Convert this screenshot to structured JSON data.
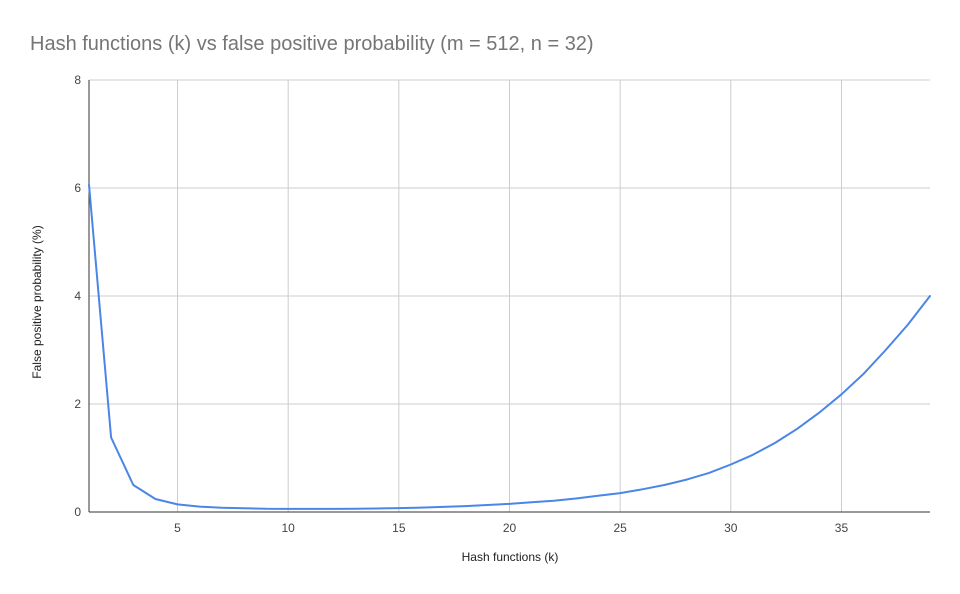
{
  "chart_data": {
    "type": "line",
    "title": "Hash functions (k) vs false positive probability (m = 512, n = 32)",
    "xlabel": "Hash functions (k)",
    "ylabel": "False positive probability (%)",
    "xlim": [
      1,
      39
    ],
    "ylim": [
      0,
      8
    ],
    "x_ticks": [
      5,
      10,
      15,
      20,
      25,
      30,
      35
    ],
    "y_ticks": [
      0,
      2,
      4,
      6,
      8
    ],
    "grid": true,
    "legend": "none",
    "colors": {
      "series": "#4a86e8",
      "grid": "#cccccc",
      "axis": "#333333",
      "title": "#757575"
    },
    "series": [
      {
        "x": [
          1,
          2,
          3,
          4,
          5,
          6,
          7,
          8,
          9,
          10,
          11,
          12,
          13,
          14,
          15,
          16,
          17,
          18,
          19,
          20,
          21,
          22,
          23,
          24,
          25,
          26,
          27,
          28,
          29,
          30,
          31,
          32,
          33,
          34,
          35,
          36,
          37,
          38,
          39
        ],
        "values": [
          6.06,
          1.38,
          0.5,
          0.24,
          0.14,
          0.1,
          0.08,
          0.07,
          0.06,
          0.058,
          0.057,
          0.058,
          0.06,
          0.065,
          0.072,
          0.082,
          0.095,
          0.11,
          0.13,
          0.15,
          0.18,
          0.21,
          0.25,
          0.3,
          0.35,
          0.42,
          0.5,
          0.6,
          0.72,
          0.88,
          1.06,
          1.28,
          1.54,
          1.84,
          2.18,
          2.56,
          3.0,
          3.47,
          4.0
        ]
      }
    ]
  }
}
